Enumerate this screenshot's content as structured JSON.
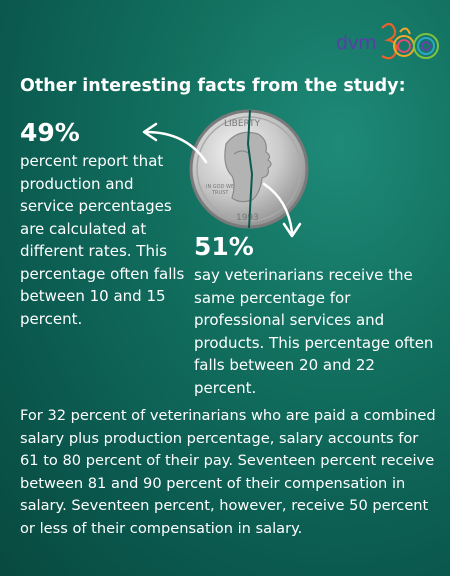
{
  "logo": {
    "text": "dvm",
    "icon": "dvm360-rings-logo"
  },
  "headline": "Other interesting facts from the study:",
  "left_stat": {
    "percent": "49%",
    "text": "percent report that production and service percentages are calculated at different rates. This percentage often falls between 10 and 15 percent."
  },
  "right_stat": {
    "percent": "51%",
    "text": "say veterinarians receive the same percentage for professional services and products. This percentage often falls between 20 and 22 percent."
  },
  "coin": {
    "icon": "quarter-coin-icon"
  },
  "bottom_paragraph": "For 32 percent of veterinarians who are paid a combined salary plus production percentage, salary accounts for 61 to 80 percent of their pay. Seventeen percent receive between 81 and 90 percent of their compensation in salary. Seventeen percent, however, receive 50 percent or less of their compensation in salary.",
  "colors": {
    "background": "#0b5a50",
    "logo_text": "#5b3da8",
    "text": "#ffffff"
  }
}
